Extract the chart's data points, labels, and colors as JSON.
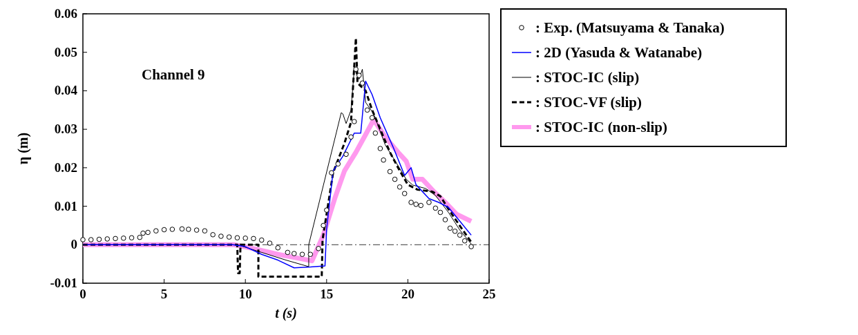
{
  "chart_data": {
    "type": "line",
    "xlabel": "t (s)",
    "ylabel": "η (m)",
    "annotations": [
      "Channel 9"
    ],
    "xlim": [
      0,
      25
    ],
    "xticks": [
      0,
      5,
      10,
      15,
      20,
      25
    ],
    "ylim": [
      -0.01,
      0.06
    ],
    "yticks": [
      -0.01,
      0,
      0.01,
      0.02,
      0.03,
      0.04,
      0.05,
      0.06
    ],
    "grid": false,
    "legend": "right",
    "ref_lines": [
      {
        "axis": "y",
        "value": 0,
        "line_style": "dashdot",
        "color": "#000000"
      }
    ],
    "series": [
      {
        "name": ": Exp. (Matsuyama & Tanaka)",
        "type": "scatter",
        "marker": "circle",
        "color": "#000000",
        "x": [
          0,
          0.5,
          1,
          1.5,
          2,
          2.5,
          3,
          3.5,
          3.7,
          4,
          4.5,
          5,
          5.5,
          6.1,
          6.5,
          7,
          7.5,
          8,
          8.5,
          9,
          9.5,
          10,
          10.5,
          11,
          11.5,
          12,
          12.6,
          13,
          13.5,
          14,
          14.5,
          14.8,
          15,
          15.3,
          15.7,
          16.2,
          16.5,
          16.7,
          16.8,
          17,
          17.2,
          17.5,
          17.8,
          18,
          18.3,
          18.5,
          18.9,
          19.2,
          19.5,
          19.8,
          20.2,
          20.5,
          20.8,
          21.3,
          21.7,
          22,
          22.3,
          22.6,
          22.9,
          23.2,
          23.5,
          23.9
        ],
        "values": [
          0.0013,
          0.0013,
          0.0014,
          0.0015,
          0.0016,
          0.0017,
          0.0018,
          0.0019,
          0.003,
          0.0032,
          0.0036,
          0.0039,
          0.004,
          0.0041,
          0.004,
          0.0038,
          0.0036,
          0.0026,
          0.0022,
          0.002,
          0.0018,
          0.0017,
          0.0016,
          0.0012,
          0.0004,
          -0.0008,
          -0.002,
          -0.0023,
          -0.0025,
          -0.0025,
          -0.001,
          0.005,
          0.009,
          0.0187,
          0.021,
          0.0235,
          0.028,
          0.032,
          0.0456,
          0.044,
          0.042,
          0.035,
          0.033,
          0.029,
          0.025,
          0.022,
          0.019,
          0.017,
          0.015,
          0.0133,
          0.011,
          0.0105,
          0.0102,
          0.011,
          0.0095,
          0.0084,
          0.0065,
          0.0043,
          0.0035,
          0.0025,
          0.001,
          -0.0005
        ]
      },
      {
        "name": ": 2D (Yasuda & Watanabe)",
        "color": "#0000ff",
        "x": [
          0,
          9.2,
          10,
          11,
          12,
          13,
          14,
          14.9,
          15,
          15.4,
          16,
          16.7,
          17.1,
          17.4,
          17.8,
          18.3,
          19.1,
          19.8,
          20.2,
          20.5,
          21.3,
          21.9,
          22.5,
          23.2,
          23.9
        ],
        "values": [
          0,
          0,
          -0.0005,
          -0.0025,
          -0.004,
          -0.006,
          -0.0058,
          -0.0055,
          0.004,
          0.0192,
          0.023,
          0.029,
          0.029,
          0.0425,
          0.039,
          0.033,
          0.0253,
          0.018,
          0.02,
          0.0156,
          0.012,
          0.011,
          0.0097,
          0.0061,
          0.0025
        ]
      },
      {
        "name": ": STOC-IC (slip)",
        "color": "#000000",
        "x": [
          0,
          9.5,
          11,
          12.5,
          13.9,
          13.9,
          15.9,
          16.0,
          16.2,
          16.5,
          16.7,
          17.0,
          17.2,
          17.4,
          17.9,
          18.6,
          19.4,
          19.9,
          20.3,
          21.1,
          21.7,
          22.5,
          23.2,
          23.9
        ],
        "values": [
          0,
          0,
          -0.002,
          -0.004,
          -0.0057,
          0,
          0.0343,
          0.034,
          0.0315,
          0.035,
          0.0456,
          0.043,
          0.0456,
          0.037,
          0.034,
          0.026,
          0.0205,
          0.017,
          0.0155,
          0.0146,
          0.0128,
          0.0084,
          0.0038,
          0.0002
        ]
      },
      {
        "name": ": STOC-VF (slip)",
        "color": "#000000",
        "line_style": "dashed",
        "x": [
          0,
          9.5,
          9.55,
          9.65,
          9.7,
          10.8,
          10.8,
          14.7,
          14.75,
          15.4,
          16.1,
          16.5,
          16.8,
          16.9,
          17.4,
          17.8,
          18.3,
          18.9,
          19.5,
          20,
          20.6,
          21.5,
          22,
          22.6,
          23.3,
          23.9
        ],
        "values": [
          0,
          0,
          -0.0074,
          -0.0074,
          0,
          0,
          -0.0083,
          -0.0083,
          0.0013,
          0.0187,
          0.0264,
          0.0318,
          0.0537,
          0.042,
          0.04,
          0.035,
          0.03,
          0.024,
          0.0192,
          0.0156,
          0.0143,
          0.0138,
          0.0126,
          0.0086,
          0.0043,
          0.0007
        ]
      },
      {
        "name": ": STOC-IC (non-slip)",
        "color": "#ff99ee",
        "x": [
          0,
          9.3,
          10.5,
          12,
          13,
          14.1,
          14.3,
          14.8,
          15.5,
          16.1,
          16.8,
          17.5,
          17.9,
          18.6,
          19.4,
          19.9,
          20.3,
          20.9,
          21.6,
          22.3,
          23,
          23.9
        ],
        "values": [
          0,
          0,
          -0.001,
          -0.0025,
          -0.0033,
          -0.0042,
          -0.0023,
          0.0025,
          0.012,
          0.0192,
          0.024,
          0.0294,
          0.0325,
          0.028,
          0.024,
          0.0217,
          0.017,
          0.017,
          0.0138,
          0.011,
          0.0079,
          0.0061
        ]
      }
    ]
  }
}
